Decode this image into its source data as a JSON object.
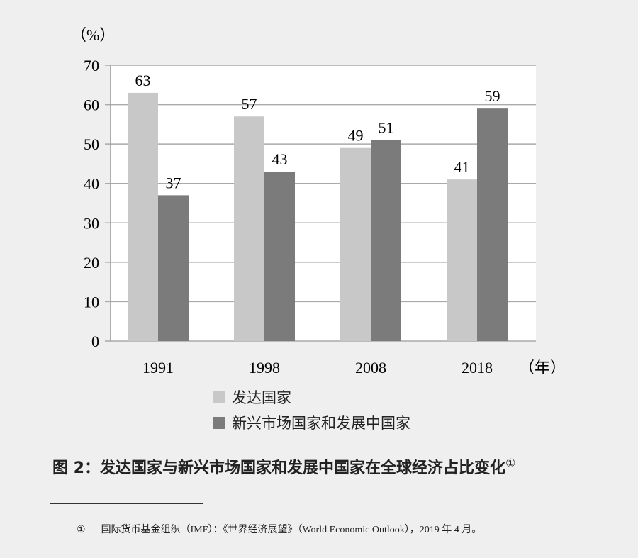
{
  "chart_data": {
    "type": "bar",
    "categories": [
      "1991",
      "1998",
      "2008",
      "2018"
    ],
    "series": [
      {
        "name": "发达国家",
        "values": [
          63,
          57,
          49,
          41
        ],
        "color": "#c8c8c8"
      },
      {
        "name": "新兴市场国家和发展中国家",
        "values": [
          37,
          43,
          51,
          59
        ],
        "color": "#7b7b7b"
      }
    ],
    "ylabel": "（%）",
    "xlabel": "（年）",
    "ylim": [
      0,
      70
    ],
    "yticks": [
      0,
      10,
      20,
      30,
      40,
      50,
      60,
      70
    ],
    "grid": true,
    "legend_position": "bottom",
    "data_labels": true
  },
  "caption": {
    "title": "图 2：发达国家与新兴市场国家和发展中国家在全球经济占比变化",
    "note_marker": "①"
  },
  "footnote": {
    "marker": "①",
    "text": "国际货币基金组织（IMF）：《世界经济展望》（World Economic Outlook），2019 年 4 月。"
  }
}
